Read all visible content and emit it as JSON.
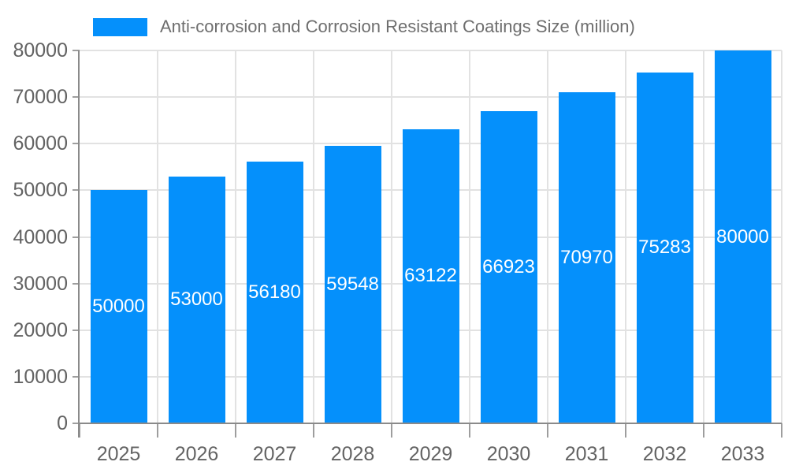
{
  "colors": {
    "bar": "#0590fb",
    "grid": "#e2e2e2",
    "axis": "#8a8a8a",
    "tick": "#9e9e9e",
    "tick_label": "#636363",
    "value_label": "#ffffff",
    "background": "#ffffff"
  },
  "legend": {
    "label": "Anti-corrosion and Corrosion Resistant Coatings Size (million)"
  },
  "chart_data": {
    "type": "bar",
    "title": "Anti-corrosion and Corrosion Resistant Coatings Size (million)",
    "categories": [
      "2025",
      "2026",
      "2027",
      "2028",
      "2029",
      "2030",
      "2031",
      "2032",
      "2033"
    ],
    "values": [
      50000,
      53000,
      56180,
      59548,
      63122,
      66923,
      70970,
      75283,
      80000
    ],
    "value_labels": [
      "50000",
      "53000",
      "56180",
      "59548",
      "63122",
      "66923",
      "70970",
      "75283",
      "80000"
    ],
    "xlabel": "",
    "ylabel": "",
    "ylim": [
      0,
      80000
    ],
    "y_ticks": [
      0,
      10000,
      20000,
      30000,
      40000,
      50000,
      60000,
      70000,
      80000
    ],
    "grid": true,
    "legend_position": "top",
    "value_label_position": "inside-center"
  }
}
